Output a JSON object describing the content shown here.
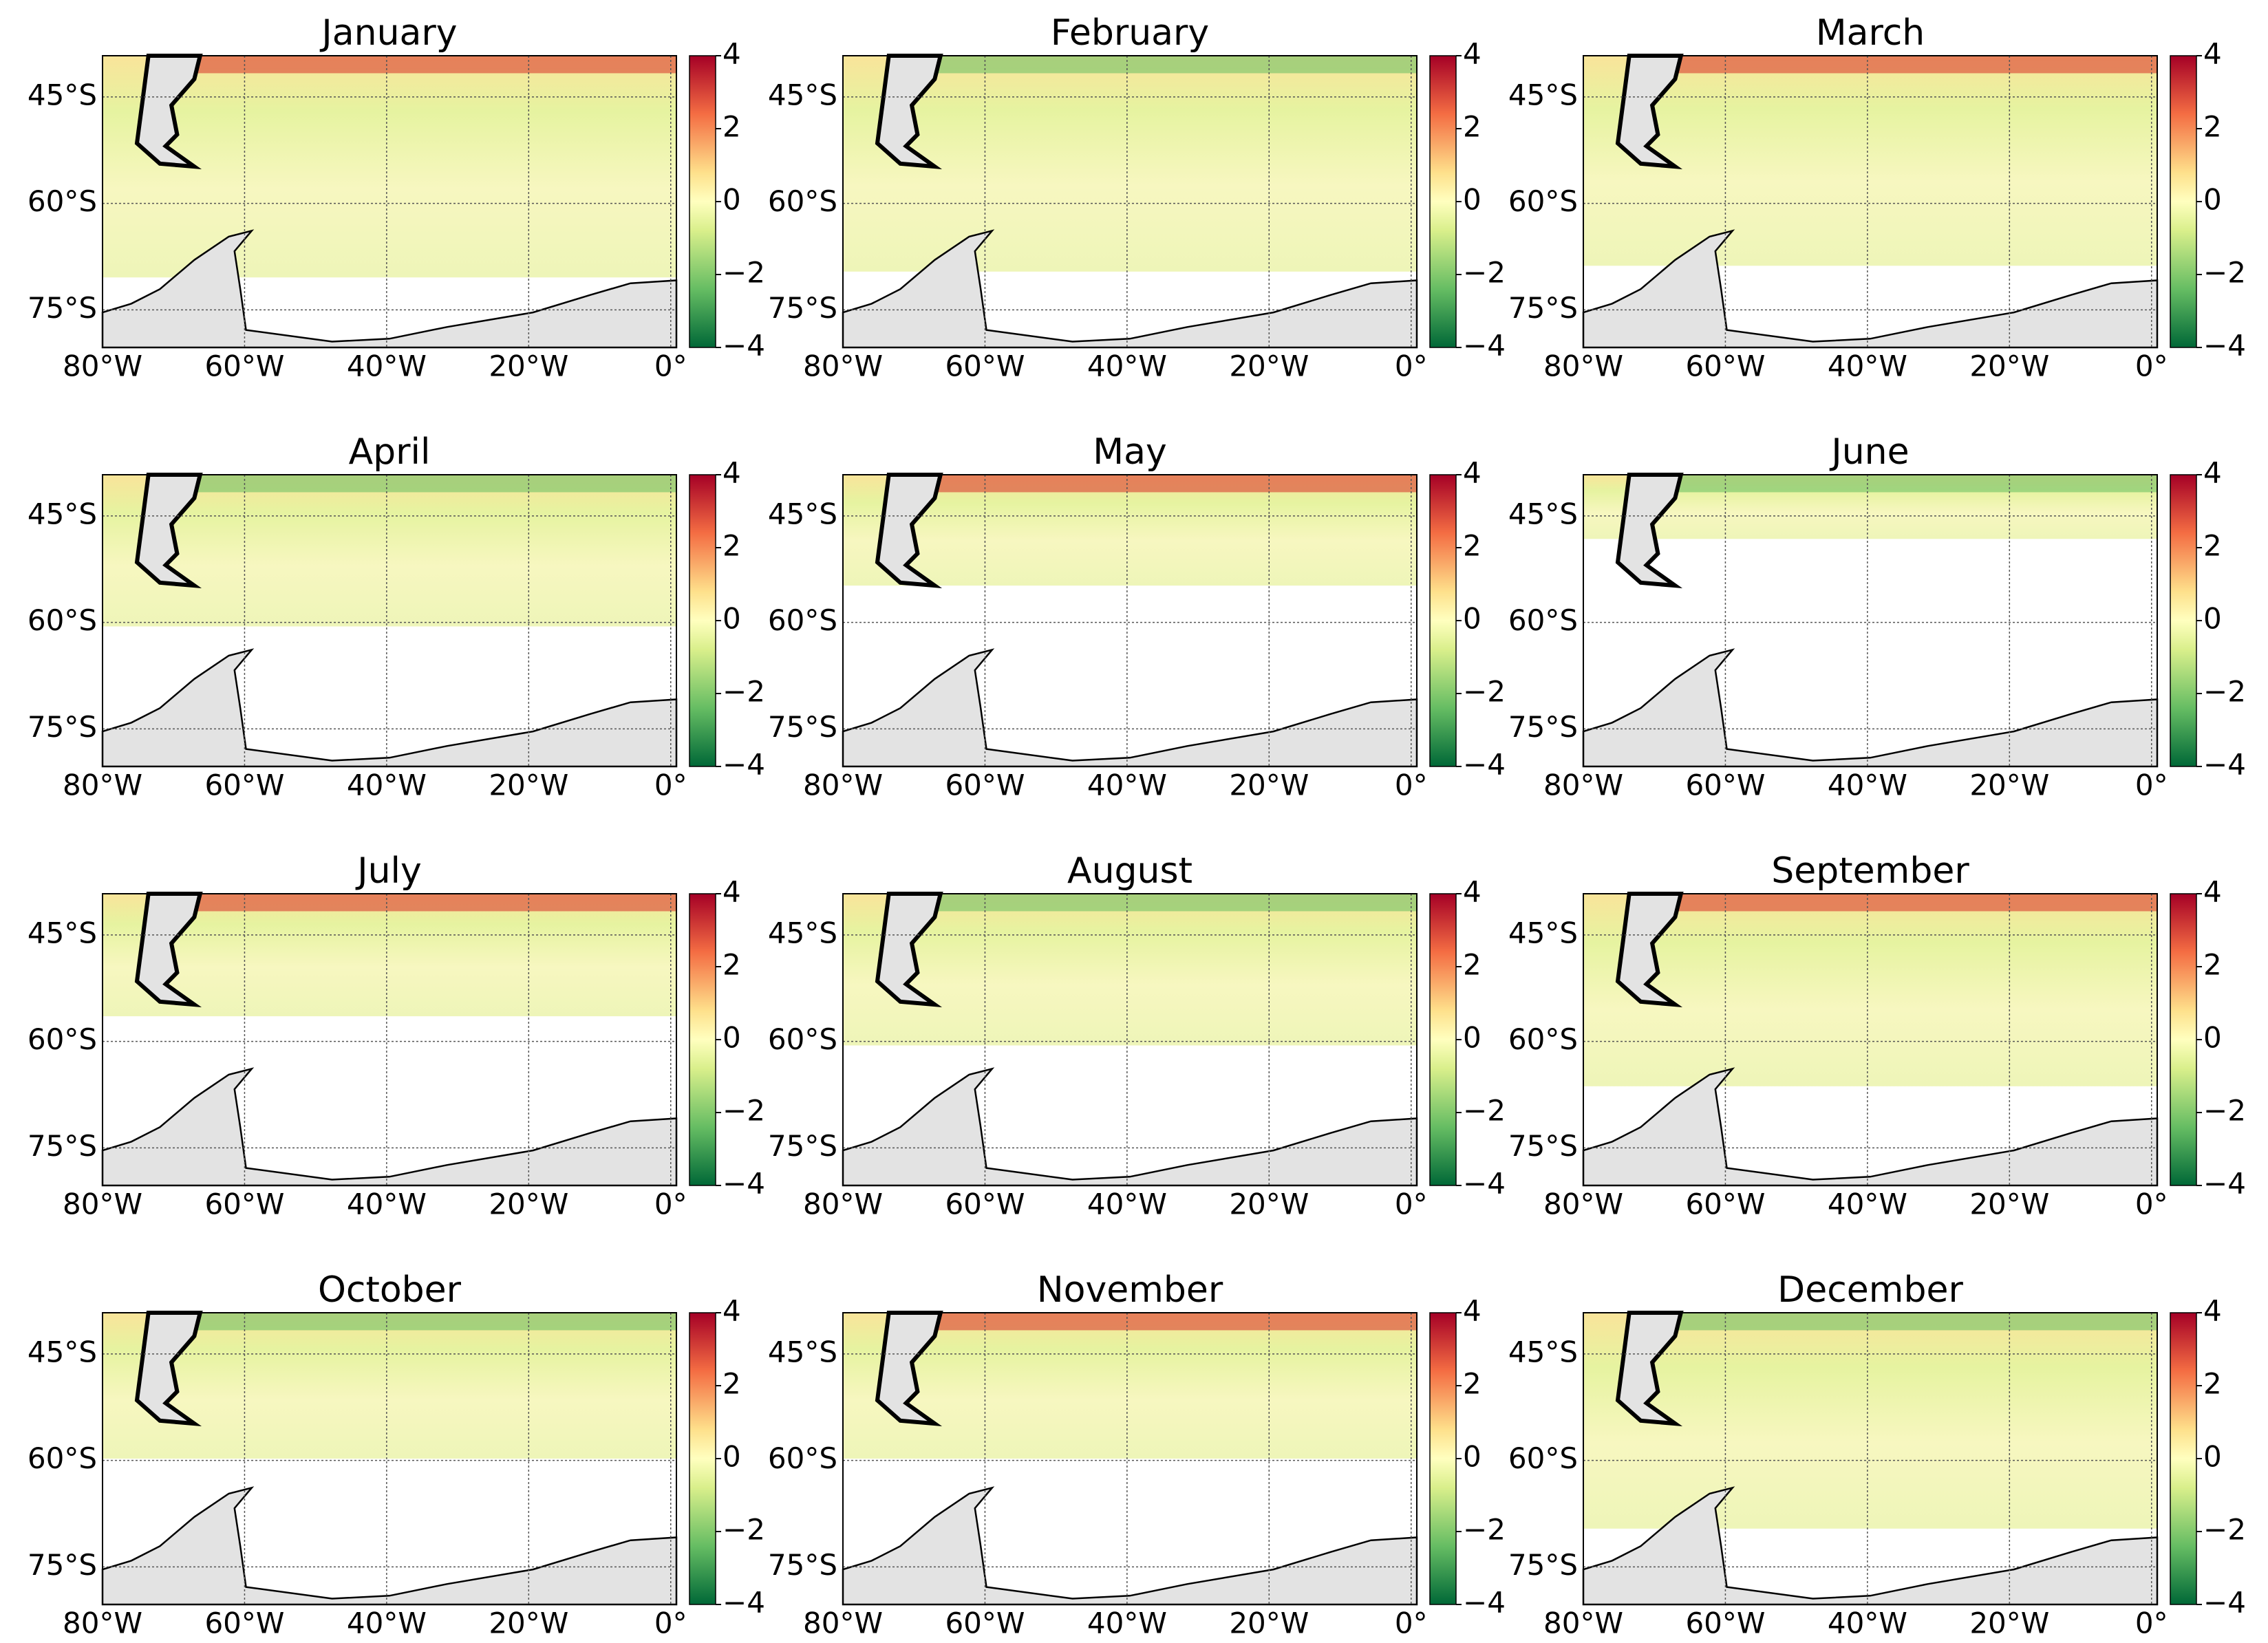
{
  "panels": [
    {
      "title": "January"
    },
    {
      "title": "February"
    },
    {
      "title": "March"
    },
    {
      "title": "April"
    },
    {
      "title": "May"
    },
    {
      "title": "June"
    },
    {
      "title": "July"
    },
    {
      "title": "August"
    },
    {
      "title": "September"
    },
    {
      "title": "October"
    },
    {
      "title": "November"
    },
    {
      "title": "December"
    }
  ],
  "xlim": [
    -80,
    0.8
  ],
  "ylim": [
    -80.3,
    -39.2
  ],
  "xticks": [
    {
      "value": -80,
      "label": "80°W"
    },
    {
      "value": -60,
      "label": "60°W"
    },
    {
      "value": -40,
      "label": "40°W"
    },
    {
      "value": -20,
      "label": "20°W"
    },
    {
      "value": 0,
      "label": "0°"
    }
  ],
  "yticks": [
    {
      "value": -45,
      "label": "45°S"
    },
    {
      "value": -60,
      "label": "60°S"
    },
    {
      "value": -75,
      "label": "75°S"
    }
  ],
  "colorbar": {
    "clim": [
      -4,
      4
    ],
    "ticks": [
      4,
      2,
      0,
      {
        "value": -2,
        "label": "−2"
      },
      {
        "value": -4,
        "label": "−4"
      }
    ]
  }
}
